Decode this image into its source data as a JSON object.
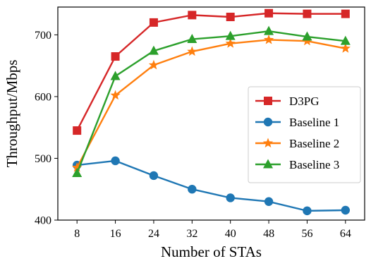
{
  "chart_data": {
    "type": "line",
    "title": "",
    "xlabel": "Number of STAs",
    "ylabel": "Throughput/Mbps",
    "x": [
      8,
      16,
      24,
      32,
      40,
      48,
      56,
      64
    ],
    "xlim": [
      4,
      68
    ],
    "ylim": [
      400,
      745
    ],
    "yticks": [
      400,
      500,
      600,
      700
    ],
    "grid": false,
    "legend_position": "center-right",
    "series": [
      {
        "name": "D3PG",
        "color": "#d62728",
        "marker": "square",
        "values": [
          545,
          665,
          720,
          732,
          729,
          735,
          734,
          734
        ]
      },
      {
        "name": "Baseline 1",
        "color": "#1f77b4",
        "marker": "circle",
        "values": [
          489,
          496,
          472,
          450,
          436,
          430,
          415,
          416
        ]
      },
      {
        "name": "Baseline 2",
        "color": "#ff7f0e",
        "marker": "star",
        "values": [
          485,
          602,
          651,
          673,
          686,
          692,
          690,
          678
        ]
      },
      {
        "name": "Baseline 3",
        "color": "#2ca02c",
        "marker": "triangle",
        "values": [
          476,
          633,
          674,
          693,
          698,
          706,
          697,
          690
        ]
      }
    ]
  }
}
